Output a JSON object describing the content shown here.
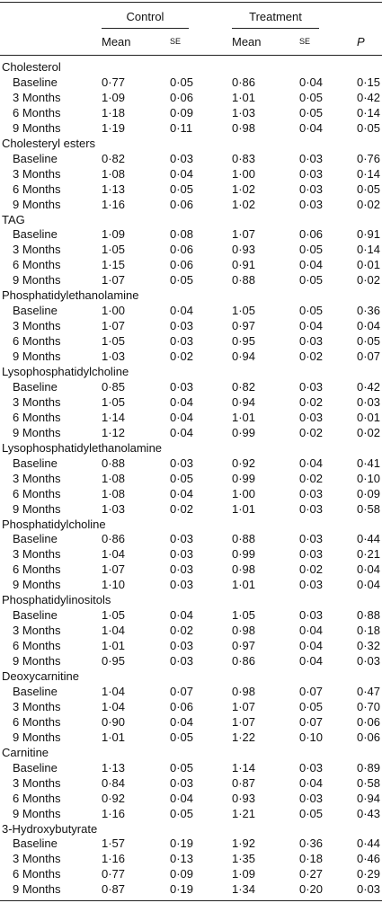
{
  "header": {
    "groups": [
      "Control",
      "Treatment"
    ],
    "columns": [
      "Mean",
      "SE",
      "Mean",
      "SE",
      "P"
    ]
  },
  "sections": [
    {
      "title": "Cholesterol",
      "rows": [
        [
          "Baseline",
          "0·77",
          "0·05",
          "0·86",
          "0·04",
          "0·15"
        ],
        [
          "3 Months",
          "1·09",
          "0·06",
          "1·01",
          "0·05",
          "0·42"
        ],
        [
          "6 Months",
          "1·18",
          "0·09",
          "1·03",
          "0·05",
          "0·14"
        ],
        [
          "9 Months",
          "1·19",
          "0·11",
          "0·98",
          "0·04",
          "0·05"
        ]
      ]
    },
    {
      "title": "Cholesteryl esters",
      "rows": [
        [
          "Baseline",
          "0·82",
          "0·03",
          "0·83",
          "0·03",
          "0·76"
        ],
        [
          "3 Months",
          "1·08",
          "0·04",
          "1·00",
          "0·03",
          "0·14"
        ],
        [
          "6 Months",
          "1·13",
          "0·05",
          "1·02",
          "0·03",
          "0·05"
        ],
        [
          "9 Months",
          "1·16",
          "0·06",
          "1·02",
          "0·03",
          "0·02"
        ]
      ]
    },
    {
      "title": "TAG",
      "rows": [
        [
          "Baseline",
          "1·09",
          "0·08",
          "1·07",
          "0·06",
          "0·91"
        ],
        [
          "3 Months",
          "1·05",
          "0·06",
          "0·93",
          "0·05",
          "0·14"
        ],
        [
          "6 Months",
          "1·15",
          "0·06",
          "0·91",
          "0·04",
          "0·01"
        ],
        [
          "9 Months",
          "1·07",
          "0·05",
          "0·88",
          "0·05",
          "0·02"
        ]
      ]
    },
    {
      "title": "Phosphatidylethanolamine",
      "rows": [
        [
          "Baseline",
          "1·00",
          "0·04",
          "1·05",
          "0·05",
          "0·36"
        ],
        [
          "3 Months",
          "1·07",
          "0·03",
          "0·97",
          "0·04",
          "0·04"
        ],
        [
          "6 Months",
          "1·05",
          "0·03",
          "0·95",
          "0·03",
          "0·05"
        ],
        [
          "9 Months",
          "1·03",
          "0·02",
          "0·94",
          "0·02",
          "0·07"
        ]
      ]
    },
    {
      "title": "Lysophosphatidylcholine",
      "rows": [
        [
          "Baseline",
          "0·85",
          "0·03",
          "0·82",
          "0·03",
          "0·42"
        ],
        [
          "3 Months",
          "1·05",
          "0·04",
          "0·94",
          "0·02",
          "0·03"
        ],
        [
          "6 Months",
          "1·14",
          "0·04",
          "1·01",
          "0·03",
          "0·01"
        ],
        [
          "9 Months",
          "1·12",
          "0·04",
          "0·99",
          "0·02",
          "0·02"
        ]
      ]
    },
    {
      "title": "Lysophosphatidylethanolamine",
      "rows": [
        [
          "Baseline",
          "0·88",
          "0·03",
          "0·92",
          "0·04",
          "0·41"
        ],
        [
          "3 Months",
          "1·08",
          "0·05",
          "0·99",
          "0·02",
          "0·10"
        ],
        [
          "6 Months",
          "1·08",
          "0·04",
          "1·00",
          "0·03",
          "0·09"
        ],
        [
          "9 Months",
          "1·03",
          "0·02",
          "1·01",
          "0·03",
          "0·58"
        ]
      ]
    },
    {
      "title": "Phosphatidylcholine",
      "rows": [
        [
          "Baseline",
          "0·86",
          "0·03",
          "0·88",
          "0·03",
          "0·44"
        ],
        [
          "3 Months",
          "1·04",
          "0·03",
          "0·99",
          "0·03",
          "0·21"
        ],
        [
          "6 Months",
          "1·07",
          "0·03",
          "0·98",
          "0·02",
          "0·04"
        ],
        [
          "9 Months",
          "1·10",
          "0·03",
          "1·01",
          "0·03",
          "0·04"
        ]
      ]
    },
    {
      "title": "Phosphatidylinositols",
      "rows": [
        [
          "Baseline",
          "1·05",
          "0·04",
          "1·05",
          "0·03",
          "0·88"
        ],
        [
          "3 Months",
          "1·04",
          "0·02",
          "0·98",
          "0·04",
          "0·18"
        ],
        [
          "6 Months",
          "1·01",
          "0·03",
          "0·97",
          "0·04",
          "0·32"
        ],
        [
          "9 Months",
          "0·95",
          "0·03",
          "0·86",
          "0·04",
          "0·03"
        ]
      ]
    },
    {
      "title": "Deoxycarnitine",
      "rows": [
        [
          "Baseline",
          "1·04",
          "0·07",
          "0·98",
          "0·07",
          "0·47"
        ],
        [
          "3 Months",
          "1·04",
          "0·06",
          "1·07",
          "0·05",
          "0·70"
        ],
        [
          "6 Months",
          "0·90",
          "0·04",
          "1·07",
          "0·07",
          "0·06"
        ],
        [
          "9 Months",
          "1·01",
          "0·05",
          "1·22",
          "0·10",
          "0·06"
        ]
      ]
    },
    {
      "title": "Carnitine",
      "rows": [
        [
          "Baseline",
          "1·13",
          "0·05",
          "1·14",
          "0·03",
          "0·89"
        ],
        [
          "3 Months",
          "0·84",
          "0·03",
          "0·87",
          "0·04",
          "0·58"
        ],
        [
          "6 Months",
          "0·92",
          "0·04",
          "0·93",
          "0·03",
          "0·94"
        ],
        [
          "9 Months",
          "1·16",
          "0·05",
          "1·21",
          "0·05",
          "0·43"
        ]
      ]
    },
    {
      "title": "3-Hydroxybutyrate",
      "rows": [
        [
          "Baseline",
          "1·57",
          "0·19",
          "1·92",
          "0·36",
          "0·44"
        ],
        [
          "3 Months",
          "1·16",
          "0·13",
          "1·35",
          "0·18",
          "0·46"
        ],
        [
          "6 Months",
          "0·77",
          "0·09",
          "1·09",
          "0·27",
          "0·29"
        ],
        [
          "9 Months",
          "0·87",
          "0·19",
          "1·34",
          "0·20",
          "0·03"
        ]
      ]
    }
  ]
}
